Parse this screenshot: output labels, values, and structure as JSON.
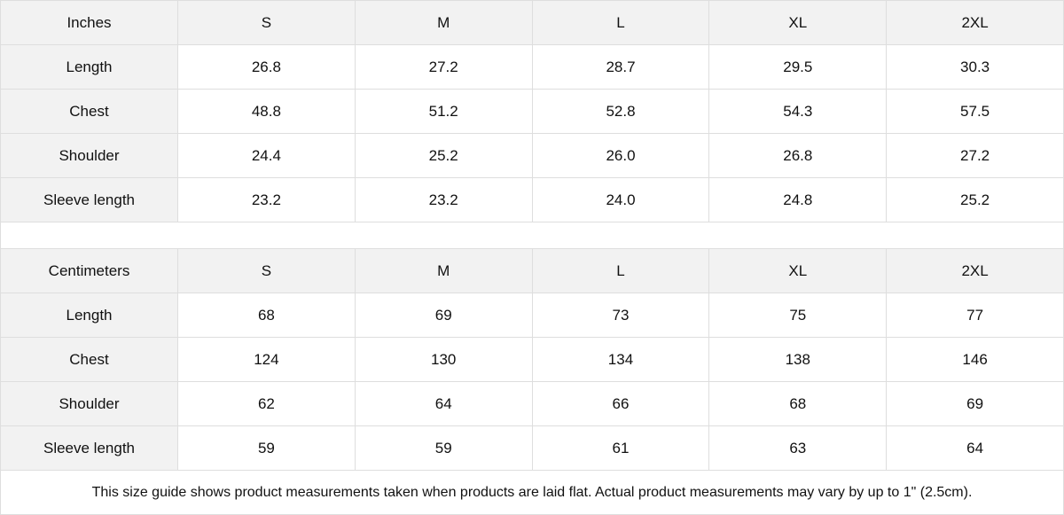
{
  "tables": [
    {
      "unit": "Inches",
      "sizes": [
        "S",
        "M",
        "L",
        "XL",
        "2XL"
      ],
      "rows": [
        {
          "label": "Length",
          "values": [
            "26.8",
            "27.2",
            "28.7",
            "29.5",
            "30.3"
          ]
        },
        {
          "label": "Chest",
          "values": [
            "48.8",
            "51.2",
            "52.8",
            "54.3",
            "57.5"
          ]
        },
        {
          "label": "Shoulder",
          "values": [
            "24.4",
            "25.2",
            "26.0",
            "26.8",
            "27.2"
          ]
        },
        {
          "label": "Sleeve length",
          "values": [
            "23.2",
            "23.2",
            "24.0",
            "24.8",
            "25.2"
          ]
        }
      ]
    },
    {
      "unit": "Centimeters",
      "sizes": [
        "S",
        "M",
        "L",
        "XL",
        "2XL"
      ],
      "rows": [
        {
          "label": "Length",
          "values": [
            "68",
            "69",
            "73",
            "75",
            "77"
          ]
        },
        {
          "label": "Chest",
          "values": [
            "124",
            "130",
            "134",
            "138",
            "146"
          ]
        },
        {
          "label": "Shoulder",
          "values": [
            "62",
            "64",
            "66",
            "68",
            "69"
          ]
        },
        {
          "label": "Sleeve length",
          "values": [
            "59",
            "59",
            "61",
            "63",
            "64"
          ]
        }
      ]
    }
  ],
  "note": "This size guide shows product measurements taken when products are laid flat.  Actual product measurements may vary by up to 1\" (2.5cm)."
}
